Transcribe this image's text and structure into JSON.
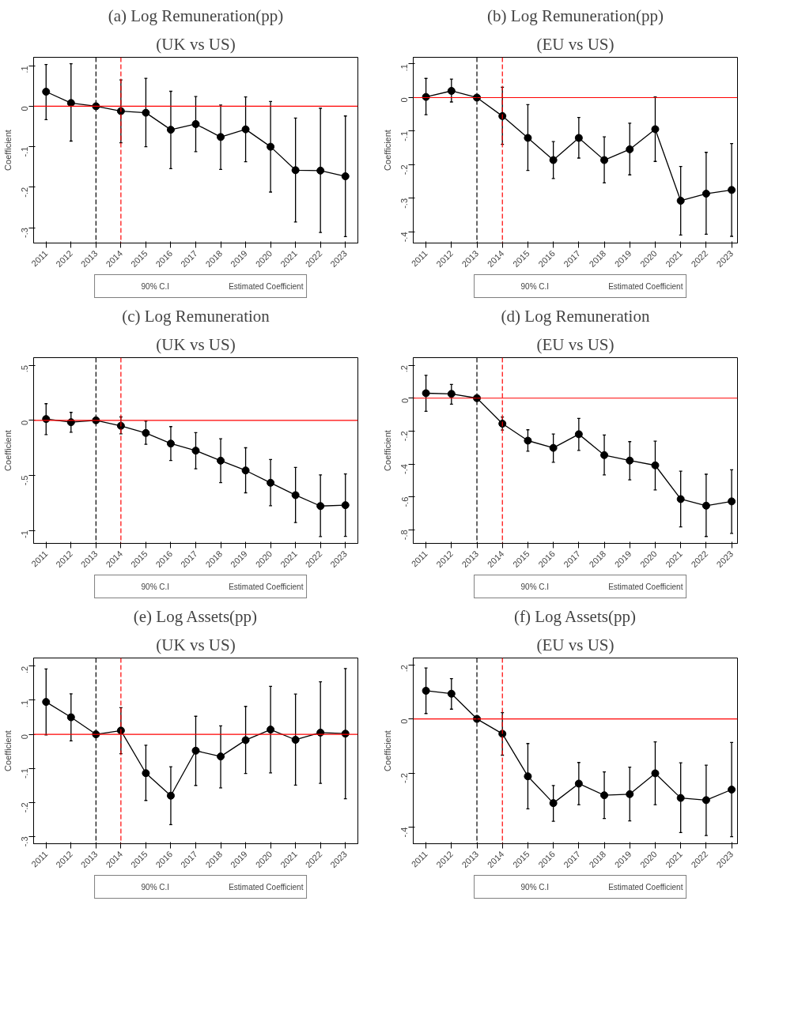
{
  "chart_data": [
    {
      "type": "line",
      "title": "(a) Log Remuneration(pp)",
      "subtitle": "(UK vs US)",
      "ylabel": "Coefficient",
      "x": [
        2011,
        2012,
        2013,
        2014,
        2015,
        2016,
        2017,
        2018,
        2019,
        2020,
        2021,
        2022,
        2023
      ],
      "xlim": [
        2010.5,
        2023.5
      ],
      "xticks": [
        2011,
        2012,
        2013,
        2014,
        2015,
        2016,
        2017,
        2018,
        2019,
        2020,
        2021,
        2022,
        2023
      ],
      "ylim": [
        -0.338,
        0.121
      ],
      "yticks": [
        {
          "value": 0.1,
          "label": ".1"
        },
        0,
        {
          "value": -0.1,
          "label": "-.1"
        },
        {
          "value": -0.2,
          "label": "-.2"
        },
        {
          "value": -0.3,
          "label": "-.3"
        }
      ],
      "grid": false,
      "legend": "bottom",
      "marker": "circle",
      "line_style": "solid",
      "annotations": [
        "90% C.I"
      ],
      "series": [
        {
          "name": "Estimated Coefficient",
          "color": "#000000",
          "values": [
            0.036,
            0.008,
            0,
            -0.012,
            -0.016,
            -0.058,
            -0.044,
            -0.076,
            -0.057,
            -0.1,
            -0.158,
            -0.159,
            -0.173
          ],
          "errors": [
            [
              -0.033,
              0.103
            ],
            [
              -0.086,
              0.105
            ],
            null,
            [
              -0.09,
              0.065
            ],
            [
              -0.1,
              0.069
            ],
            [
              -0.154,
              0.037
            ],
            [
              -0.112,
              0.024
            ],
            [
              -0.156,
              0.003
            ],
            [
              -0.137,
              0.023
            ],
            [
              -0.212,
              0.012
            ],
            [
              -0.286,
              -0.029
            ],
            [
              -0.312,
              -0.005
            ],
            [
              -0.322,
              -0.024
            ]
          ]
        }
      ],
      "ref_lines": [
        {
          "axis": "y",
          "value": 0,
          "color": "#ff0000",
          "line_style": "solid"
        },
        {
          "axis": "x",
          "value": 2013,
          "color": "#000000",
          "line_style": "dashed"
        },
        {
          "axis": "x",
          "value": 2014,
          "color": "#ff0000",
          "line_style": "dashed"
        }
      ]
    },
    {
      "type": "line",
      "title": "(b) Log Remuneration(pp)",
      "subtitle": "(EU vs US)",
      "ylabel": "Coefficient",
      "x": [
        2011,
        2012,
        2013,
        2014,
        2015,
        2016,
        2017,
        2018,
        2019,
        2020,
        2021,
        2022,
        2023
      ],
      "xlim": [
        2010.5,
        2023.23
      ],
      "xticks": [
        2011,
        2012,
        2013,
        2014,
        2015,
        2016,
        2017,
        2018,
        2019,
        2020,
        2021,
        2022,
        2023
      ],
      "ylim": [
        -0.433,
        0.12
      ],
      "yticks": [
        {
          "value": 0.1,
          "label": ".1"
        },
        0,
        {
          "value": -0.1,
          "label": "-.1"
        },
        {
          "value": -0.2,
          "label": "-.2"
        },
        {
          "value": -0.3,
          "label": "-.3"
        },
        {
          "value": -0.4,
          "label": "-.4"
        }
      ],
      "grid": false,
      "legend": "bottom",
      "marker": "circle",
      "line_style": "solid",
      "annotations": [
        "90% C.I"
      ],
      "series": [
        {
          "name": "Estimated Coefficient",
          "color": "#000000",
          "values": [
            0.002,
            0.02,
            0,
            -0.055,
            -0.12,
            -0.186,
            -0.12,
            -0.186,
            -0.154,
            -0.094,
            -0.307,
            -0.286,
            -0.275
          ],
          "errors": [
            [
              -0.051,
              0.057
            ],
            [
              -0.013,
              0.055
            ],
            null,
            [
              -0.139,
              0.031
            ],
            [
              -0.217,
              -0.021
            ],
            [
              -0.241,
              -0.131
            ],
            [
              -0.18,
              -0.059
            ],
            [
              -0.254,
              -0.117
            ],
            [
              -0.23,
              -0.076
            ],
            [
              -0.19,
              0.002
            ],
            [
              -0.409,
              -0.205
            ],
            [
              -0.407,
              -0.163
            ],
            [
              -0.413,
              -0.137
            ]
          ]
        }
      ],
      "ref_lines": [
        {
          "axis": "y",
          "value": 0,
          "color": "#ff0000",
          "line_style": "solid"
        },
        {
          "axis": "x",
          "value": 2013,
          "color": "#000000",
          "line_style": "dashed"
        },
        {
          "axis": "x",
          "value": 2014,
          "color": "#ff0000",
          "line_style": "dashed"
        }
      ]
    },
    {
      "type": "line",
      "title": "(c) Log Remuneration",
      "subtitle": "(UK vs US)",
      "ylabel": "Coefficient",
      "x": [
        2011,
        2012,
        2013,
        2014,
        2015,
        2016,
        2017,
        2018,
        2019,
        2020,
        2021,
        2022,
        2023
      ],
      "xlim": [
        2010.5,
        2023.5
      ],
      "xticks": [
        2011,
        2012,
        2013,
        2014,
        2015,
        2016,
        2017,
        2018,
        2019,
        2020,
        2021,
        2022,
        2023
      ],
      "ylim": [
        -1.117,
        0.569
      ],
      "yticks": [
        {
          "value": 0.5,
          "label": ".5"
        },
        0,
        {
          "value": -0.5,
          "label": "-.5"
        },
        -1
      ],
      "grid": false,
      "legend": "bottom",
      "marker": "circle",
      "line_style": "solid",
      "annotations": [
        "90% C.I"
      ],
      "series": [
        {
          "name": "Estimated Coefficient",
          "color": "#000000",
          "values": [
            0.012,
            -0.017,
            0,
            -0.05,
            -0.115,
            -0.211,
            -0.275,
            -0.366,
            -0.455,
            -0.567,
            -0.679,
            -0.778,
            -0.77
          ],
          "errors": [
            [
              -0.129,
              0.151
            ],
            [
              -0.108,
              0.072
            ],
            null,
            [
              -0.122,
              0.031
            ],
            [
              -0.218,
              -0.007
            ],
            [
              -0.364,
              -0.057
            ],
            [
              -0.44,
              -0.112
            ],
            [
              -0.565,
              -0.167
            ],
            [
              -0.658,
              -0.249
            ],
            [
              -0.775,
              -0.356
            ],
            [
              -0.928,
              -0.428
            ],
            [
              -1.055,
              -0.495
            ],
            [
              -1.053,
              -0.486
            ]
          ]
        }
      ],
      "ref_lines": [
        {
          "axis": "y",
          "value": 0,
          "color": "#ff0000",
          "line_style": "solid"
        },
        {
          "axis": "x",
          "value": 2013,
          "color": "#000000",
          "line_style": "dashed"
        },
        {
          "axis": "x",
          "value": 2014,
          "color": "#ff0000",
          "line_style": "dashed"
        }
      ]
    },
    {
      "type": "line",
      "title": "(d) Log Remuneration",
      "subtitle": "(EU vs US)",
      "ylabel": "Coefficient",
      "x": [
        2011,
        2012,
        2013,
        2014,
        2015,
        2016,
        2017,
        2018,
        2019,
        2020,
        2021,
        2022,
        2023
      ],
      "xlim": [
        2010.5,
        2023.23
      ],
      "xticks": [
        2011,
        2012,
        2013,
        2014,
        2015,
        2016,
        2017,
        2018,
        2019,
        2020,
        2021,
        2022,
        2023
      ],
      "ylim": [
        -0.882,
        0.246
      ],
      "yticks": [
        {
          "value": 0.2,
          "label": ".2"
        },
        0,
        {
          "value": -0.2,
          "label": "-.2"
        },
        {
          "value": -0.4,
          "label": "-.4"
        },
        {
          "value": -0.6,
          "label": "-.6"
        },
        {
          "value": -0.8,
          "label": "-.8"
        }
      ],
      "grid": false,
      "legend": "bottom",
      "marker": "circle",
      "line_style": "solid",
      "annotations": [
        "90% C.I"
      ],
      "series": [
        {
          "name": "Estimated Coefficient",
          "color": "#000000",
          "values": [
            0.03,
            0.026,
            0,
            -0.155,
            -0.258,
            -0.302,
            -0.219,
            -0.346,
            -0.379,
            -0.408,
            -0.613,
            -0.653,
            -0.627
          ],
          "errors": [
            [
              -0.08,
              0.139
            ],
            [
              -0.037,
              0.083
            ],
            null,
            [
              -0.194,
              -0.115
            ],
            [
              -0.322,
              -0.192
            ],
            [
              -0.389,
              -0.218
            ],
            [
              -0.317,
              -0.123
            ],
            [
              -0.466,
              -0.224
            ],
            [
              -0.496,
              -0.264
            ],
            [
              -0.557,
              -0.261
            ],
            [
              -0.782,
              -0.443
            ],
            [
              -0.84,
              -0.462
            ],
            [
              -0.821,
              -0.435
            ]
          ]
        }
      ],
      "ref_lines": [
        {
          "axis": "y",
          "value": 0,
          "color": "#ff0000",
          "line_style": "solid"
        },
        {
          "axis": "x",
          "value": 2013,
          "color": "#000000",
          "line_style": "dashed"
        },
        {
          "axis": "x",
          "value": 2014,
          "color": "#ff0000",
          "line_style": "dashed"
        }
      ]
    },
    {
      "type": "line",
      "title": "(e) Log Assets(pp)",
      "subtitle": "(UK vs US)",
      "ylabel": "Coefficient",
      "x": [
        2011,
        2012,
        2013,
        2014,
        2015,
        2016,
        2017,
        2018,
        2019,
        2020,
        2021,
        2022,
        2023
      ],
      "xlim": [
        2010.5,
        2023.5
      ],
      "xticks": [
        2011,
        2012,
        2013,
        2014,
        2015,
        2016,
        2017,
        2018,
        2019,
        2020,
        2021,
        2022,
        2023
      ],
      "ylim": [
        -0.321,
        0.224
      ],
      "yticks": [
        {
          "value": 0.2,
          "label": ".2"
        },
        {
          "value": 0.1,
          "label": ".1"
        },
        0,
        {
          "value": -0.1,
          "label": "-.1"
        },
        {
          "value": -0.2,
          "label": "-.2"
        },
        {
          "value": -0.3,
          "label": "-.3"
        }
      ],
      "grid": false,
      "legend": "bottom",
      "marker": "circle",
      "line_style": "solid",
      "annotations": [
        "90% C.I"
      ],
      "series": [
        {
          "name": "Estimated Coefficient",
          "color": "#000000",
          "values": [
            0.095,
            0.05,
            0,
            0.011,
            -0.114,
            -0.18,
            -0.048,
            -0.065,
            -0.017,
            0.014,
            -0.016,
            0.005,
            0.002
          ],
          "errors": [
            [
              -0.002,
              0.192
            ],
            [
              -0.019,
              0.119
            ],
            null,
            [
              -0.057,
              0.078
            ],
            [
              -0.194,
              -0.032
            ],
            [
              -0.265,
              -0.095
            ],
            [
              -0.15,
              0.053
            ],
            [
              -0.157,
              0.025
            ],
            [
              -0.115,
              0.082
            ],
            [
              -0.113,
              0.141
            ],
            [
              -0.149,
              0.118
            ],
            [
              -0.144,
              0.154
            ],
            [
              -0.189,
              0.193
            ]
          ]
        }
      ],
      "ref_lines": [
        {
          "axis": "y",
          "value": 0,
          "color": "#ff0000",
          "line_style": "solid"
        },
        {
          "axis": "x",
          "value": 2013,
          "color": "#000000",
          "line_style": "dashed"
        },
        {
          "axis": "x",
          "value": 2014,
          "color": "#ff0000",
          "line_style": "dashed"
        }
      ]
    },
    {
      "type": "line",
      "title": "(f) Log Assets(pp)",
      "subtitle": "(EU vs US)",
      "ylabel": "Coefficient",
      "x": [
        2011,
        2012,
        2013,
        2014,
        2015,
        2016,
        2017,
        2018,
        2019,
        2020,
        2021,
        2022,
        2023
      ],
      "xlim": [
        2010.5,
        2023.23
      ],
      "xticks": [
        2011,
        2012,
        2013,
        2014,
        2015,
        2016,
        2017,
        2018,
        2019,
        2020,
        2021,
        2022,
        2023
      ],
      "ylim": [
        -0.461,
        0.225
      ],
      "yticks": [
        {
          "value": 0.2,
          "label": ".2"
        },
        0,
        {
          "value": -0.2,
          "label": "-.2"
        },
        {
          "value": -0.4,
          "label": "-.4"
        }
      ],
      "grid": false,
      "legend": "bottom",
      "marker": "circle",
      "line_style": "solid",
      "annotations": [
        "90% C.I"
      ],
      "series": [
        {
          "name": "Estimated Coefficient",
          "color": "#000000",
          "values": [
            0.104,
            0.093,
            0,
            -0.055,
            -0.212,
            -0.311,
            -0.239,
            -0.282,
            -0.278,
            -0.201,
            -0.292,
            -0.3,
            -0.261
          ],
          "errors": [
            [
              0.02,
              0.188
            ],
            [
              0.036,
              0.149
            ],
            null,
            [
              -0.134,
              0.023
            ],
            [
              -0.332,
              -0.091
            ],
            [
              -0.378,
              -0.246
            ],
            [
              -0.317,
              -0.161
            ],
            [
              -0.368,
              -0.196
            ],
            [
              -0.377,
              -0.178
            ],
            [
              -0.317,
              -0.085
            ],
            [
              -0.42,
              -0.162
            ],
            [
              -0.431,
              -0.171
            ],
            [
              -0.435,
              -0.087
            ]
          ]
        }
      ],
      "ref_lines": [
        {
          "axis": "y",
          "value": 0,
          "color": "#ff0000",
          "line_style": "solid"
        },
        {
          "axis": "x",
          "value": 2013,
          "color": "#000000",
          "line_style": "dashed"
        },
        {
          "axis": "x",
          "value": 2014,
          "color": "#ff0000",
          "line_style": "dashed"
        }
      ]
    }
  ]
}
